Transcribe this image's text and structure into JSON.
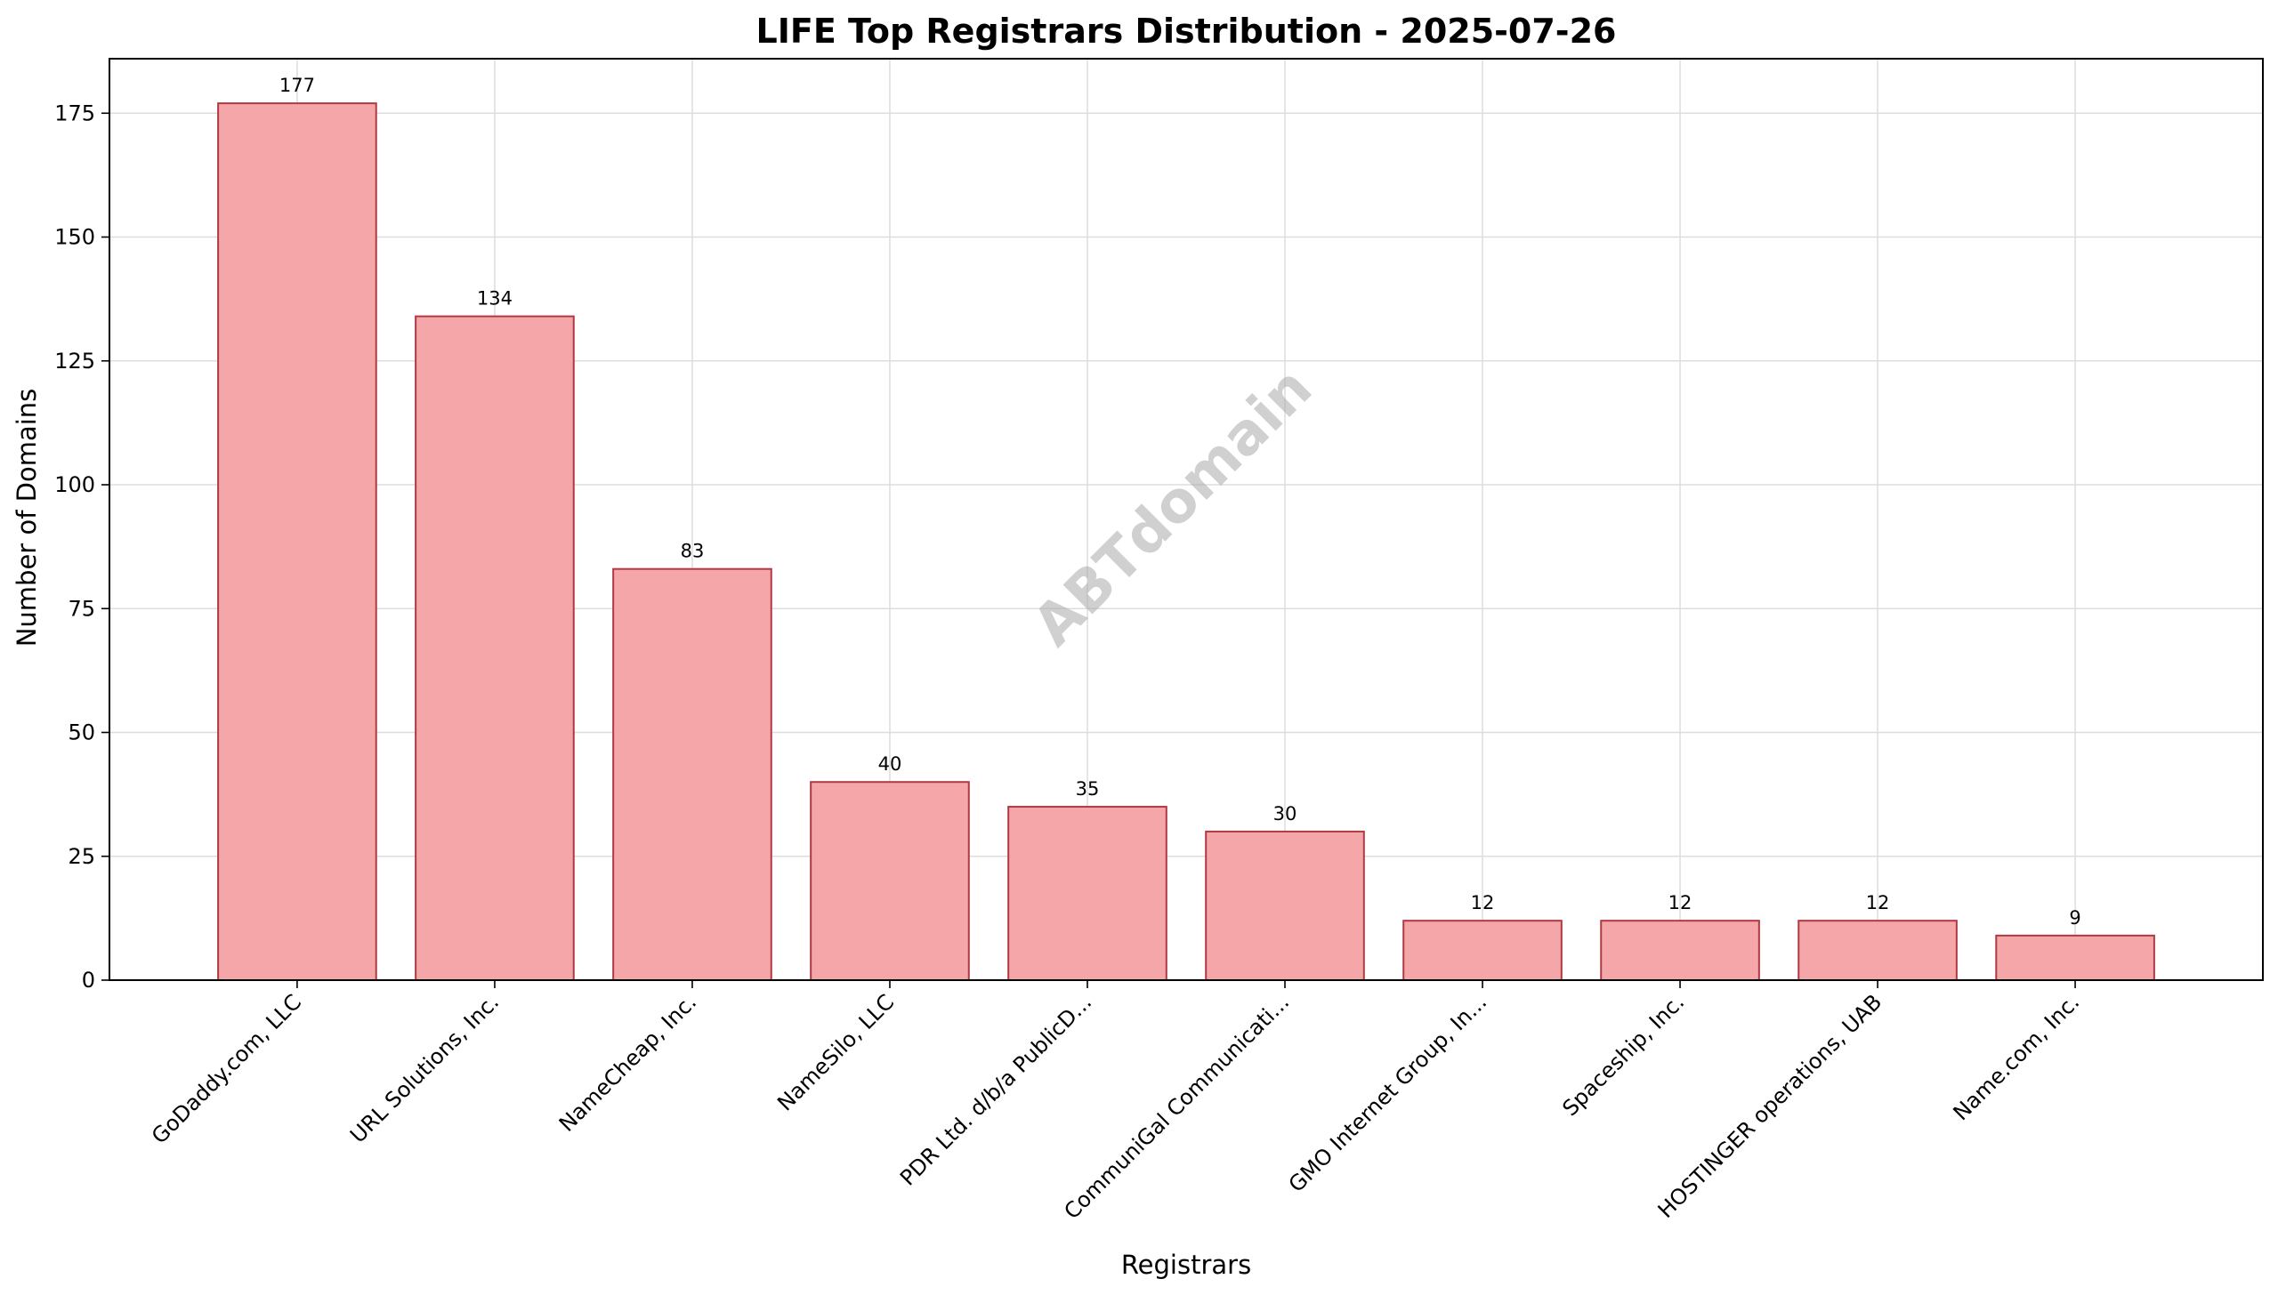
{
  "chart_data": {
    "type": "bar",
    "title": "LIFE Top Registrars Distribution - 2025-07-26",
    "xlabel": "Registrars",
    "ylabel": "Number of Domains",
    "categories": [
      "GoDaddy.com, LLC",
      "URL Solutions, Inc.",
      "NameCheap, Inc.",
      "NameSilo, LLC",
      "PDR Ltd. d/b/a PublicD...",
      "CommuniGal Communicati...",
      "GMO Internet Group, In...",
      "Spaceship, Inc.",
      "HOSTINGER operations, UAB",
      "Name.com, Inc."
    ],
    "values": [
      177,
      134,
      83,
      40,
      35,
      30,
      12,
      12,
      12,
      9
    ],
    "ylim": [
      0,
      186
    ],
    "yticks": [
      0,
      25,
      50,
      75,
      100,
      125,
      150,
      175
    ],
    "grid": true,
    "bar_color": "#f4a6a8",
    "bar_edge_color": "#b03a44",
    "watermark": "ABTdomain"
  }
}
